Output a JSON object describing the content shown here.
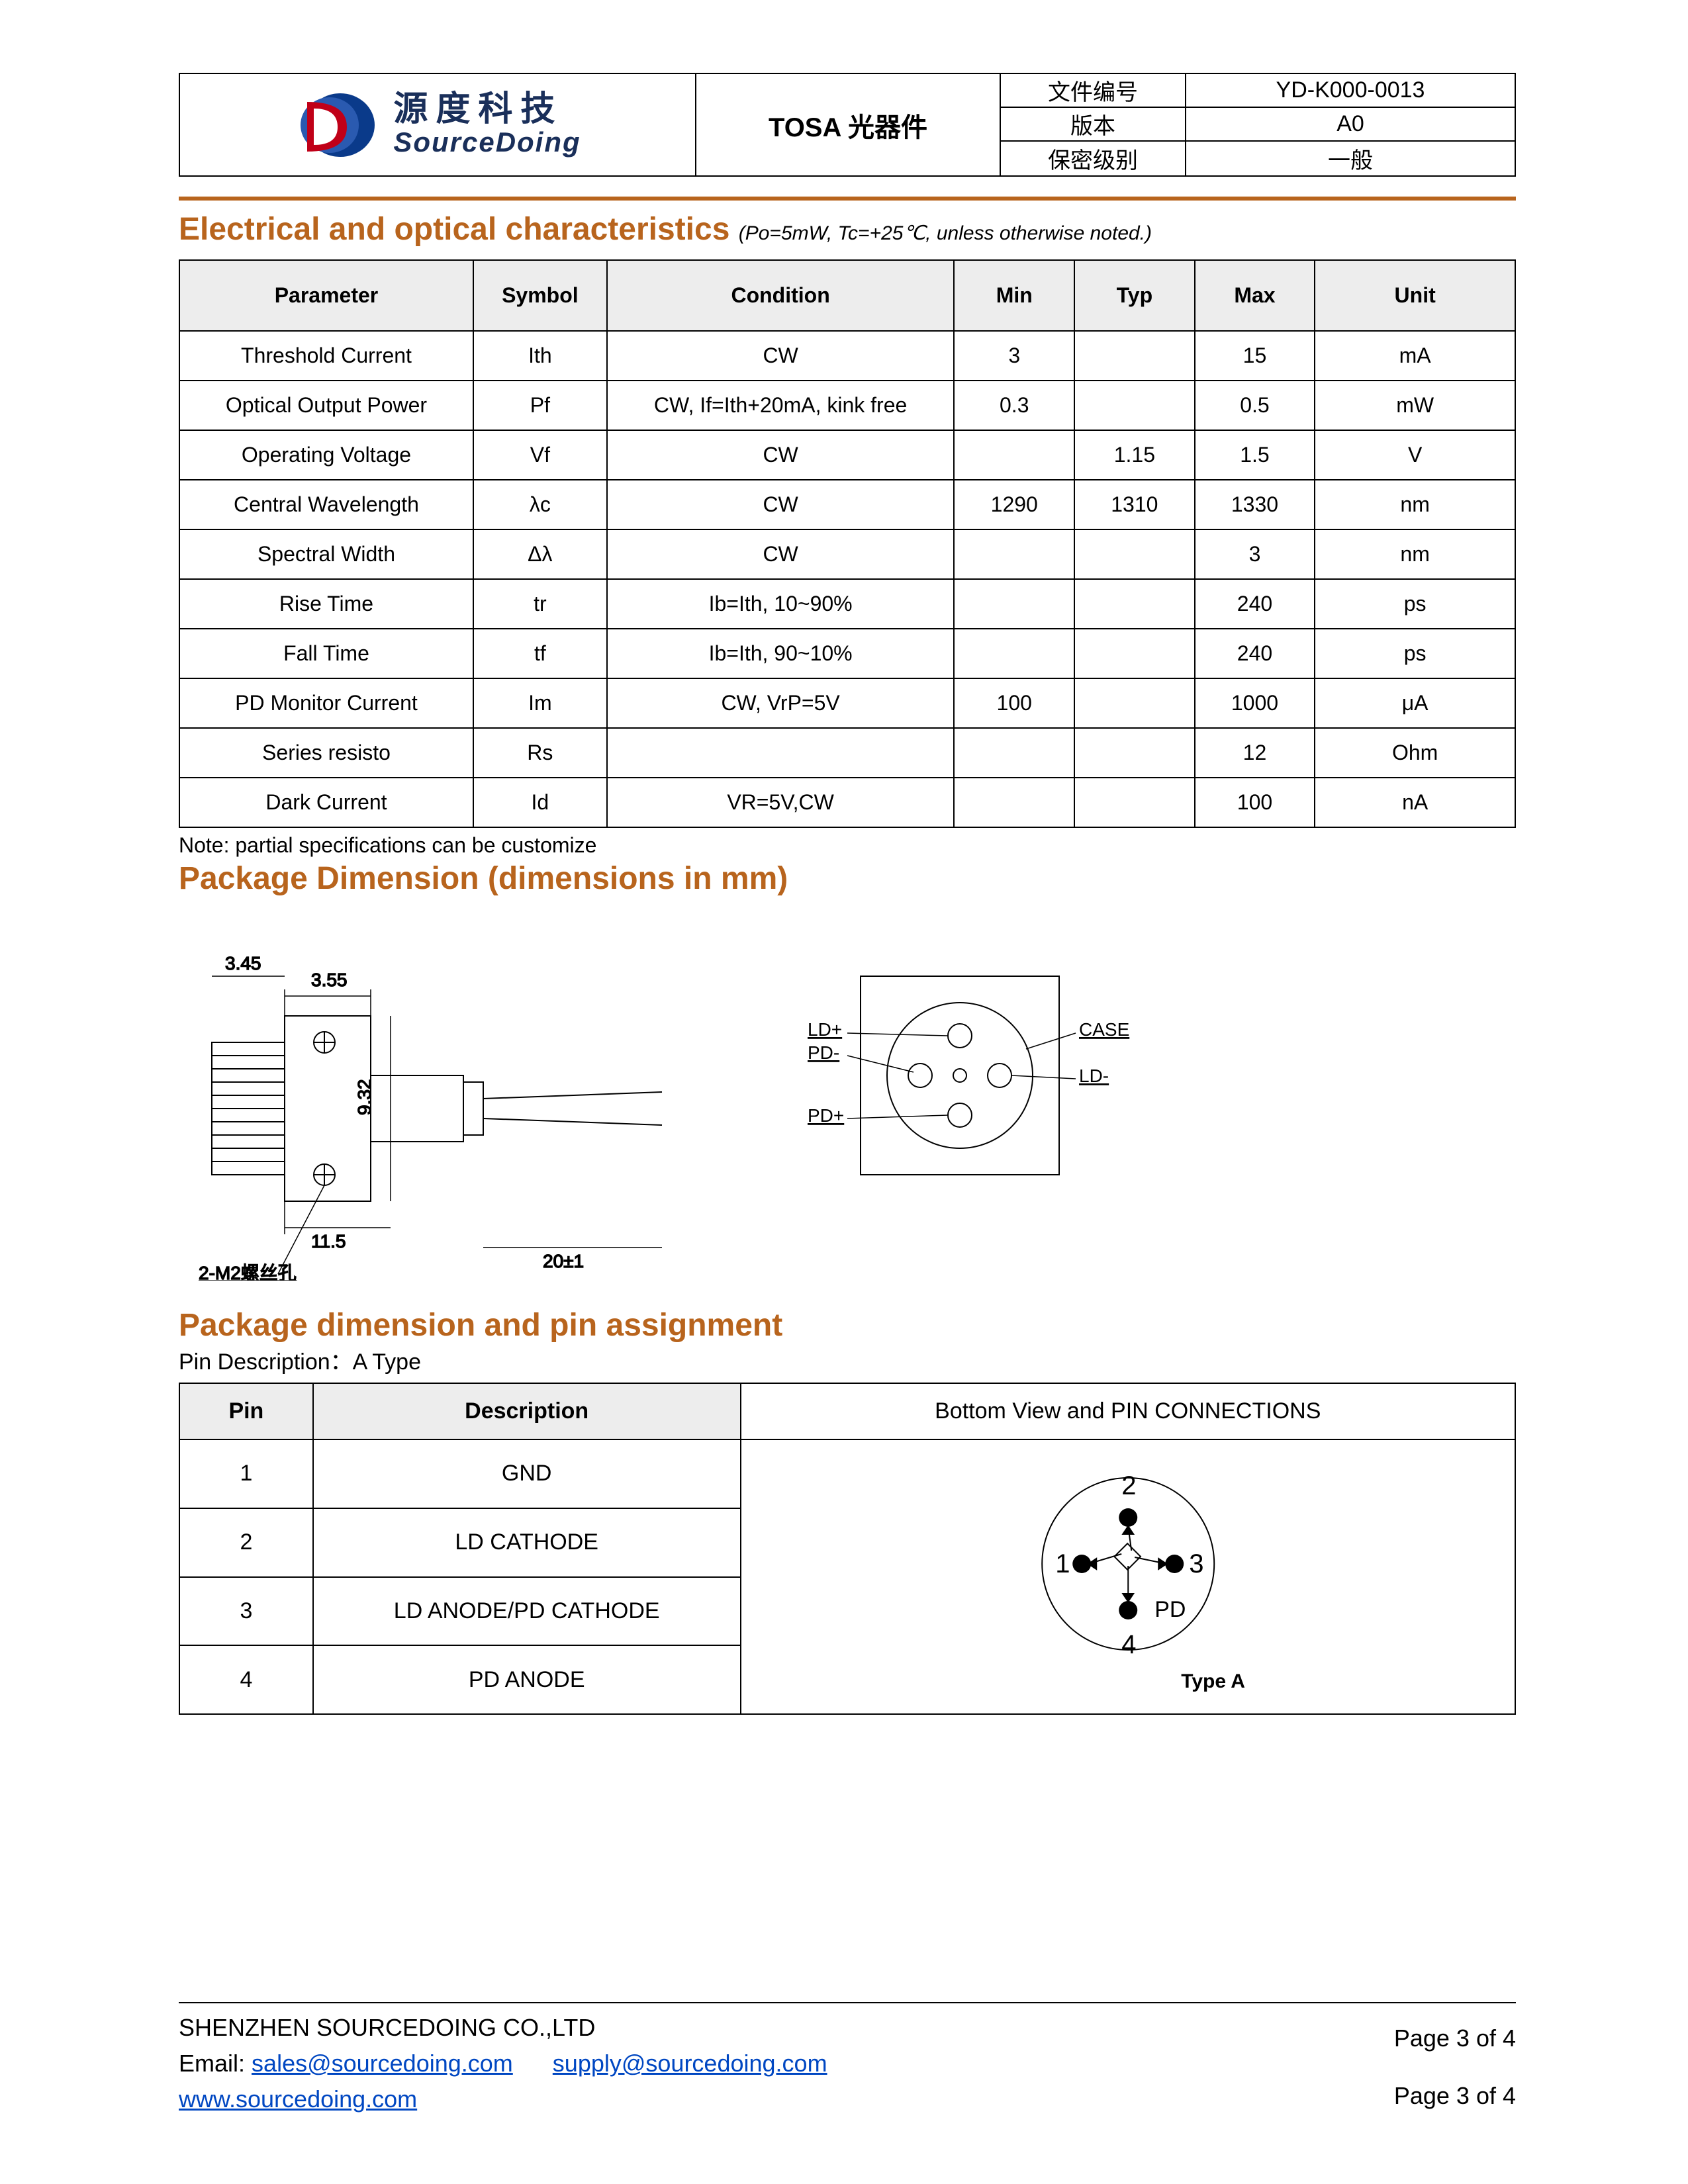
{
  "header": {
    "logo_cn": "源度科技",
    "logo_en": "SourceDoing",
    "title": "TOSA 光器件",
    "meta": [
      {
        "k": "文件编号",
        "v": "YD-K000-0013"
      },
      {
        "k": "版本",
        "v": "A0"
      },
      {
        "k": "保密级别",
        "v": "一般"
      }
    ],
    "logo_colors": {
      "d_fill": "#c00018",
      "o_fill": "#0a3a8a",
      "text": "#1a2f5a"
    }
  },
  "section1": {
    "title": "Electrical and optical characteristics",
    "subtitle": "(Po=5mW, Tc=+25℃, unless otherwise noted.)",
    "columns": [
      "Parameter",
      "Symbol",
      "Condition",
      "Min",
      "Typ",
      "Max",
      "Unit"
    ],
    "col_widths_pct": [
      22,
      10,
      26,
      9,
      9,
      9,
      15
    ],
    "rows": [
      [
        "Threshold Current",
        "Ith",
        "CW",
        "3",
        "",
        "15",
        "mA"
      ],
      [
        "Optical Output Power",
        "Pf",
        "CW, If=Ith+20mA, kink free",
        "0.3",
        "",
        "0.5",
        "mW"
      ],
      [
        "Operating Voltage",
        "Vf",
        "CW",
        "",
        "1.15",
        "1.5",
        "V"
      ],
      [
        "Central Wavelength",
        "λc",
        "CW",
        "1290",
        "1310",
        "1330",
        "nm"
      ],
      [
        "Spectral Width",
        "Δλ",
        "CW",
        "",
        "",
        "3",
        "nm"
      ],
      [
        "Rise Time",
        "tr",
        "Ib=Ith, 10~90%",
        "",
        "",
        "240",
        "ps"
      ],
      [
        "Fall Time",
        "tf",
        "Ib=Ith, 90~10%",
        "",
        "",
        "240",
        "ps"
      ],
      [
        "PD Monitor Current",
        "Im",
        "CW, VrP=5V",
        "100",
        "",
        "1000",
        "μA"
      ],
      [
        "Series resisto",
        "Rs",
        "",
        "",
        "",
        "12",
        "Ohm"
      ],
      [
        "Dark   Current",
        "Id",
        "VR=5V,CW",
        "",
        "",
        "100",
        "nA"
      ]
    ],
    "note": "Note: partial specifications can be customize"
  },
  "section2": {
    "title": "Package Dimension (dimensions in mm)",
    "dim_labels": {
      "top1": "3.55",
      "top2": "3.45",
      "width": "9.32",
      "base": "11.5",
      "lead": "20±1",
      "hole": "2-M2螺丝孔"
    },
    "pin_labels": {
      "ldp": "LD+",
      "ldm": "LD-",
      "pdp": "PD+",
      "pdm": "PD-",
      "case": "CASE"
    }
  },
  "section3": {
    "title": "Package dimension and pin assignment",
    "pin_desc_label": "Pin Description：A Type",
    "columns": [
      "Pin",
      "Description",
      "Bottom View and PIN CONNECTIONS"
    ],
    "col_widths_pct": [
      10,
      32,
      58
    ],
    "rows": [
      [
        "1",
        "GND"
      ],
      [
        "2",
        "LD CATHODE"
      ],
      [
        "3",
        "LD ANODE/PD CATHODE"
      ],
      [
        "4",
        "PD ANODE"
      ]
    ],
    "diagram": {
      "pins": [
        "1",
        "2",
        "3",
        "4"
      ],
      "pd_label": "PD",
      "type_label": "Type A"
    }
  },
  "footer": {
    "company": "SHENZHEN SOURCEDOING CO.,LTD",
    "email_label": "Email:",
    "emails": [
      "sales@sourcedoing.com",
      "supply@sourcedoing.com"
    ],
    "site": "www.sourcedoing.com",
    "page": "Page 3 of 4"
  },
  "colors": {
    "heading": "#b8641d",
    "rule": "#b8641d",
    "th_bg": "#ededed",
    "border": "#000000",
    "link": "#0047c2"
  }
}
